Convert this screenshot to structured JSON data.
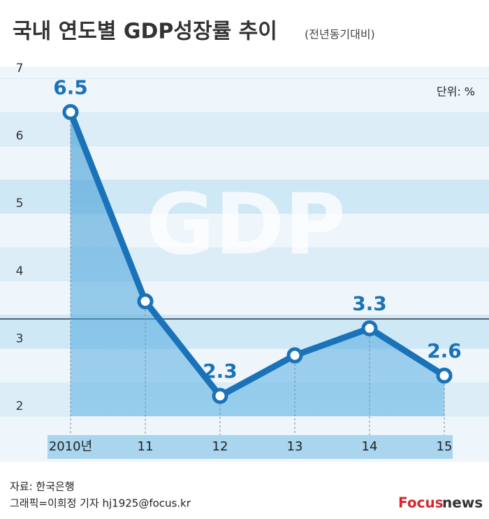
{
  "chart_data": {
    "type": "line",
    "title": "국내 연도별 GDP성장률 추이",
    "subtitle": "(전년동기대비)",
    "unit_label": "단위: %",
    "background_text": "GDP",
    "categories": [
      "2010년",
      "11",
      "12",
      "13",
      "14",
      "15"
    ],
    "series": [
      {
        "name": "GDP성장률",
        "color": "#1a72b8",
        "values": [
          6.5,
          3.7,
          2.3,
          2.9,
          3.3,
          2.6
        ],
        "value_labels": [
          "6.5",
          null,
          "2.3",
          null,
          "3.3",
          "2.6"
        ]
      }
    ],
    "ylim": [
      2,
      7
    ],
    "yticks": [
      2,
      3,
      4,
      5,
      6,
      7
    ],
    "grid": true,
    "source": "자료: 한국은행",
    "credit": "그래픽=이희정 기자 hj1925@focus.kr",
    "logo": {
      "brand": "Focus",
      "suffix": "news"
    }
  }
}
